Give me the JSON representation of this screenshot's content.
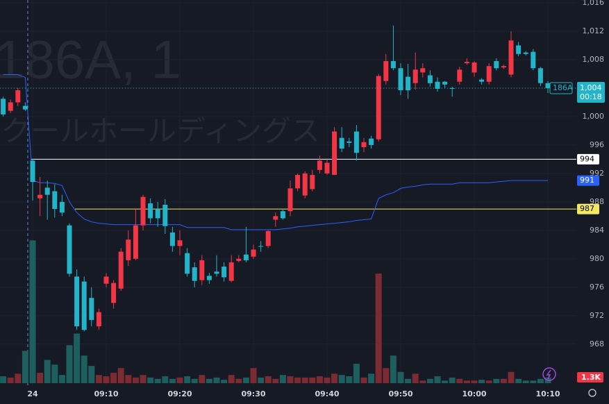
{
  "chart_data": {
    "type": "candlestick",
    "watermark_symbol": "186A, 1",
    "watermark_name": "クールホールディングス",
    "categories": [
      null,
      null,
      null,
      null,
      "24",
      null,
      null,
      null,
      null,
      null,
      null,
      null,
      null,
      null,
      "09:10",
      null,
      null,
      null,
      null,
      null,
      null,
      null,
      null,
      null,
      "09:20",
      null,
      null,
      null,
      null,
      null,
      null,
      null,
      null,
      null,
      "09:30",
      null,
      null,
      null,
      null,
      null,
      null,
      null,
      null,
      null,
      "09:40",
      null,
      null,
      null,
      null,
      null,
      null,
      null,
      null,
      null,
      "09:50",
      null,
      null,
      null,
      null,
      null,
      null,
      null,
      null,
      null,
      "10:00",
      null,
      null,
      null,
      null,
      null,
      null,
      null,
      null,
      null,
      "10:10"
    ],
    "open": [
      1002.5,
      1000.8,
      1002,
      1001.5,
      993.8,
      988.5,
      990,
      989.5,
      988,
      984.7,
      977.5,
      976.8,
      974.5,
      970.5,
      976.5,
      973.8,
      975.8,
      979.8,
      980,
      984.7,
      987.8,
      987,
      987.6,
      983.7,
      981.8,
      980.8,
      978.8,
      977,
      977.6,
      978.2,
      978.9,
      976.9,
      979.7,
      980.6,
      980.3,
      981.8,
      981.8,
      985.5,
      986.7,
      986.7,
      989.9,
      988.9,
      989.8,
      992.5,
      992,
      991.8,
      997,
      996.5,
      997.9,
      995.7,
      996.9,
      996.8,
      1005,
      1007.8,
      1006.8,
      1005.6,
      1004.7,
      1006.2,
      1005.8,
      1004.9,
      1004.9,
      1004,
      1004.9,
      1007.5,
      1006.2,
      1005.2,
      1004.9,
      1007.8,
      1006.9,
      1005.9,
      1010,
      1009,
      1009.1,
      1006.8,
      1004.7
    ],
    "high": [
      1002.8,
      1002.4,
      1004,
      1002,
      994,
      991.5,
      991,
      990.5,
      989,
      985,
      978.5,
      977.5,
      976,
      973,
      978,
      977,
      981.5,
      984,
      987,
      989,
      988.5,
      988,
      988.4,
      984.5,
      984,
      981.5,
      979.5,
      980.5,
      978,
      980.5,
      979.5,
      980.5,
      980.5,
      984.5,
      982,
      982.5,
      984,
      986.5,
      987,
      991,
      992,
      992.3,
      992.5,
      994.5,
      994,
      998.5,
      998.5,
      997,
      998.8,
      997,
      997.3,
      1006,
      1008.8,
      1012.8,
      1007.5,
      1007.4,
      1009,
      1007.5,
      1006.5,
      1005.5,
      1005,
      1004.2,
      1007,
      1008.2,
      1007.8,
      1005.4,
      1007.5,
      1008.2,
      1007.3,
      1012,
      1010.5,
      1009.2,
      1009.5,
      1007,
      1005
    ],
    "low": [
      1000,
      1000.5,
      1001.5,
      1000.8,
      988.2,
      986,
      985.5,
      985.8,
      986,
      977.5,
      970,
      969.8,
      970.5,
      970,
      976,
      973,
      975.5,
      979,
      979.8,
      984,
      985,
      984.5,
      983.5,
      981,
      980.5,
      977.5,
      976,
      976.3,
      976.5,
      977.5,
      976.8,
      976.7,
      979.5,
      979.5,
      980,
      981,
      981.5,
      984.5,
      985.5,
      986,
      989.5,
      988.5,
      989.5,
      992,
      991.8,
      991.8,
      995,
      995.7,
      993.8,
      995,
      995.5,
      996.5,
      1004.5,
      1006.5,
      1003,
      1002.5,
      1003.8,
      1005.5,
      1004.2,
      1003.5,
      1004,
      1002.8,
      1004.5,
      1007.3,
      1005.6,
      1004.5,
      1004.5,
      1006.5,
      1006.7,
      1005.5,
      1008.5,
      1008.6,
      1006.5,
      1004.3,
      1003.3
    ],
    "close": [
      1000.3,
      1002,
      1003.7,
      1001,
      990.8,
      989,
      989,
      987,
      986.5,
      977.9,
      970.5,
      970,
      971.4,
      972.5,
      977.5,
      976.6,
      981,
      982.7,
      984.7,
      988.7,
      985.7,
      985.7,
      984.6,
      981.8,
      982.6,
      977.9,
      976.9,
      979.8,
      977,
      977.9,
      977.4,
      979.5,
      980,
      979.8,
      981.3,
      981.7,
      983.9,
      986,
      985.7,
      989.9,
      991.8,
      992,
      991.8,
      993.8,
      993.5,
      997.9,
      995.5,
      996.3,
      994.9,
      996.4,
      996,
      1005.7,
      1007.8,
      1006.8,
      1003.7,
      1003.7,
      1006.6,
      1006.8,
      1004.7,
      1003.9,
      1004.5,
      1003.9,
      1006.6,
      1007.7,
      1007.6,
      1004.9,
      1007.1,
      1006.8,
      1007.1,
      1010.7,
      1008.8,
      1008.8,
      1006.8,
      1004.7,
      1004
    ],
    "up_color": "#f23645",
    "down_color": "#22b5c9",
    "ylim": [
      962.22,
      1016.39
    ],
    "yticks": [
      {
        "value": 968,
        "label": "968"
      },
      {
        "value": 972,
        "label": "972"
      },
      {
        "value": 976,
        "label": "976"
      },
      {
        "value": 980,
        "label": "980"
      },
      {
        "value": 984,
        "label": "984"
      },
      {
        "value": 988,
        "label": "988"
      },
      {
        "value": 992,
        "label": "992"
      },
      {
        "value": 996,
        "label": "996"
      },
      {
        "value": 1000,
        "label": "1,000"
      },
      {
        "value": 1004,
        "label": "1,004"
      },
      {
        "value": 1008,
        "label": "1,008"
      },
      {
        "value": 1012,
        "label": "1,012"
      },
      {
        "value": 1016,
        "label": "1,016"
      }
    ],
    "volume": {
      "values": [
        1600,
        1300,
        2200,
        7500,
        33100,
        2400,
        5400,
        4300,
        1900,
        8800,
        11500,
        6400,
        4000,
        1900,
        1600,
        2400,
        3500,
        1900,
        1300,
        1900,
        1300,
        1000,
        1600,
        1000,
        1300,
        1600,
        1000,
        1900,
        1000,
        1300,
        800,
        1900,
        1000,
        1300,
        3500,
        1300,
        1600,
        1000,
        1900,
        1600,
        1300,
        1300,
        1300,
        1600,
        1300,
        2200,
        1900,
        1600,
        4500,
        1300,
        2200,
        25400,
        3500,
        6400,
        2600,
        1000,
        2200,
        600,
        1000,
        1600,
        600,
        1300,
        1000,
        600,
        600,
        800,
        600,
        1000,
        1000,
        2600,
        1000,
        600,
        600,
        1000,
        1300
      ],
      "vlim": [
        0,
        37000
      ],
      "last_label": "1.3K",
      "up_color": "#7c2b33",
      "down_color": "#1d5e5e"
    },
    "vwap": {
      "color": "#2962ff",
      "values": [
        1005.9,
        1005.9,
        1005.9,
        1005.5,
        991,
        990.7,
        990.7,
        990.6,
        990.3,
        988,
        986.5,
        985.6,
        985.2,
        985,
        984.9,
        984.8,
        984.8,
        984.8,
        984.8,
        984.8,
        984.8,
        984.8,
        984.8,
        984.8,
        984.8,
        984.4,
        984.4,
        984.4,
        984.4,
        984.4,
        984.4,
        984.1,
        984.1,
        984.1,
        984.1,
        984.1,
        984.1,
        984.1,
        984.2,
        984.3,
        984.5,
        984.6,
        984.7,
        984.8,
        984.9,
        985,
        985.1,
        985.2,
        985.4,
        985.5,
        985.6,
        988.5,
        989,
        989.3,
        989.9,
        990.1,
        990.2,
        990.4,
        990.5,
        990.5,
        990.5,
        990.5,
        990.7,
        990.7,
        990.7,
        990.7,
        990.7,
        990.8,
        990.9,
        991,
        991,
        991,
        991,
        991,
        991
      ]
    },
    "hlines": [
      {
        "value": 994,
        "color": "#ffffff"
      },
      {
        "value": 987,
        "color": "#f5e663"
      }
    ],
    "last_price": {
      "value": 1004,
      "label": "1,004"
    },
    "symbol": "186A",
    "countdown": "00:18"
  }
}
